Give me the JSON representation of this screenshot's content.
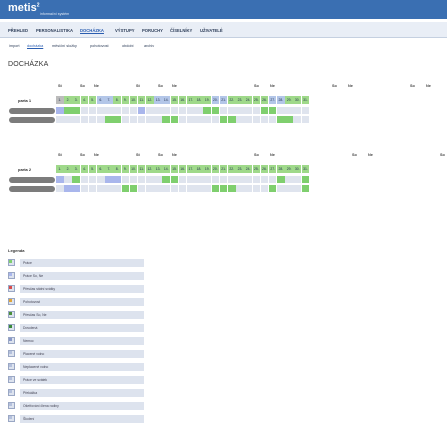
{
  "app": {
    "logo_text": "metis",
    "logo_sup": "2",
    "logo_sub": "informační systém",
    "brand_color": "#3a6fb2"
  },
  "mainmenu": {
    "items": [
      {
        "label": "PŘEHLED",
        "active": false
      },
      {
        "label": "PERSONALISTIKA",
        "active": false
      },
      {
        "label": "DOCHÁZKA",
        "active": true
      },
      {
        "label": "VÝSTUPY",
        "active": false
      },
      {
        "label": "PORUCHY",
        "active": false
      },
      {
        "label": "ČÍSELNÍKY",
        "active": false
      },
      {
        "label": "UŽIVATELÉ",
        "active": false
      }
    ]
  },
  "submenu": {
    "items": [
      {
        "label": "import",
        "active": false
      },
      {
        "label": "docházka",
        "active": true
      },
      {
        "label": "měsíční složky",
        "active": false
      },
      {
        "label": "pohotovost",
        "active": false
      },
      {
        "label": "období",
        "active": false
      },
      {
        "label": "archiv",
        "active": false
      }
    ]
  },
  "page": {
    "title": "DOCHÁZKA"
  },
  "grid": {
    "dow_labels": [
      "St",
      "So",
      "Ne",
      "St",
      "So",
      "Ne",
      "So",
      "Ne",
      "So",
      "Ne",
      "So",
      "Ne",
      "So"
    ],
    "days": [
      "1.",
      "2.",
      "3.",
      "4.",
      "5.",
      "6.",
      "7.",
      "8.",
      "9.",
      "10.",
      "11.",
      "12.",
      "13.",
      "14.",
      "15.",
      "16.",
      "17.",
      "18.",
      "19.",
      "20.",
      "21.",
      "22.",
      "23.",
      "24.",
      "25.",
      "26.",
      "27.",
      "28.",
      "29.",
      "30.",
      "31."
    ],
    "parts": [
      {
        "label": "parta 1"
      },
      {
        "label": "parta 2"
      }
    ]
  },
  "legend": {
    "title": "Legenda",
    "items": [
      {
        "label": "Práce",
        "color": "#7fcf6e",
        "flag": ""
      },
      {
        "label": "Práce So, Ne",
        "color": "#a9b6ec",
        "flag": "#d94b4b"
      },
      {
        "label": "Přesčas státní svátky",
        "color": "#dde3ee",
        "flag": "#d94b4b"
      },
      {
        "label": "Pohotovost",
        "color": "#dde3ee",
        "flag": "#e0a53a"
      },
      {
        "label": "Přesčas So, Ne",
        "color": "#dde3ee",
        "flag": "#4a8f3a"
      },
      {
        "label": "Dovolená",
        "color": "#dde3ee",
        "flag": "#3a8a3a"
      },
      {
        "label": "Nemoc",
        "color": "#dde3ee",
        "flag": ""
      },
      {
        "label": "Placené volno",
        "color": "#dde3ee",
        "flag": ""
      },
      {
        "label": "Neplacené volno",
        "color": "#dde3ee",
        "flag": ""
      },
      {
        "label": "Práce ve svátek",
        "color": "#dde3ee",
        "flag": ""
      },
      {
        "label": "Překážka",
        "color": "#dde3ee",
        "flag": ""
      },
      {
        "label": "Ošetřování člena rodiny",
        "color": "#dde3ee",
        "flag": ""
      },
      {
        "label": "Školení",
        "color": "#dde3ee",
        "flag": ""
      }
    ]
  }
}
